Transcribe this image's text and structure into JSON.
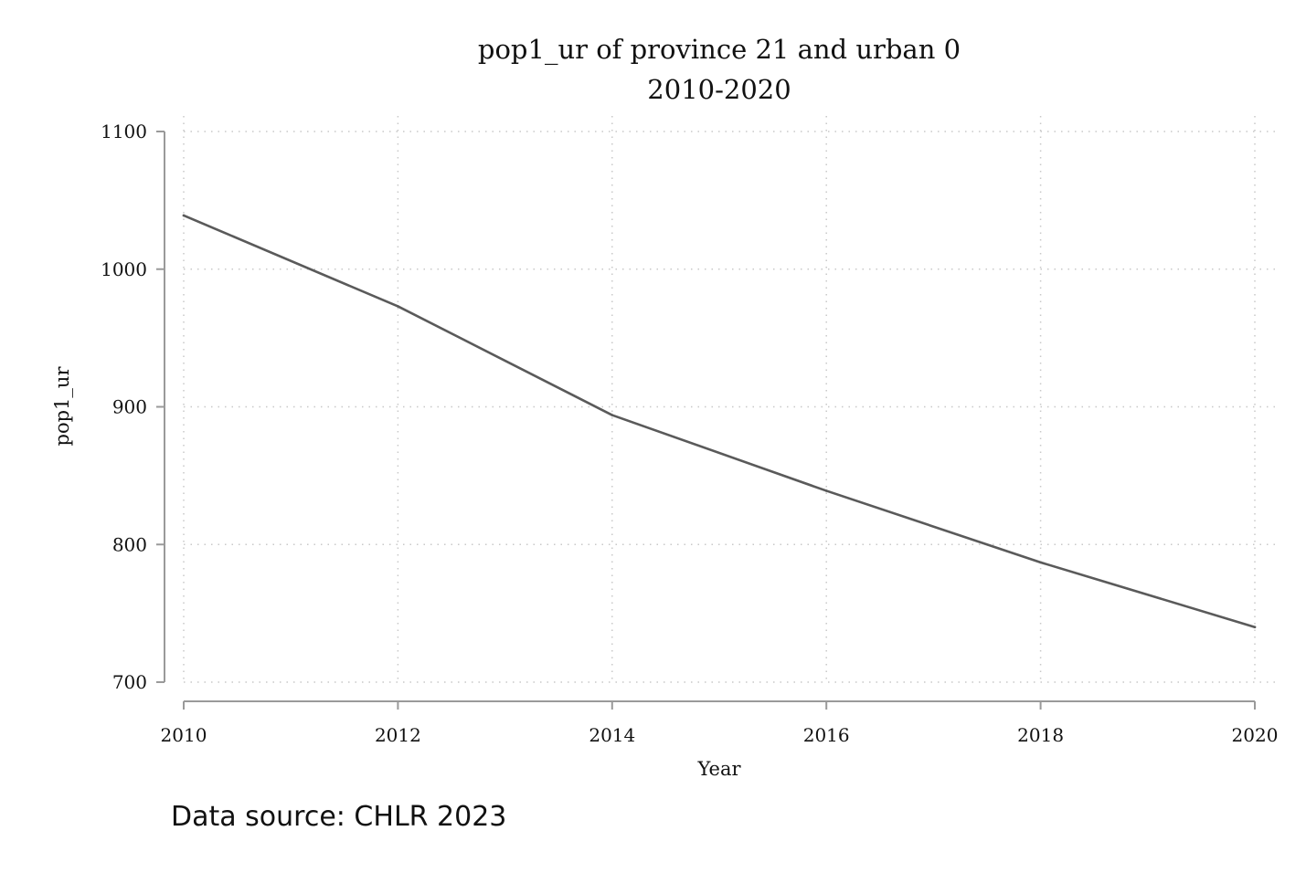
{
  "chart_data": {
    "type": "line",
    "title": "pop1_ur of province 21 and urban 0",
    "subtitle": "2010-2020",
    "xlabel": "Year",
    "ylabel": "pop1_ur",
    "note": "Data source: CHLR 2023",
    "x": [
      2010,
      2012,
      2014,
      2016,
      2018,
      2020
    ],
    "series": [
      {
        "values": [
          1039,
          973,
          894,
          839,
          787,
          740
        ]
      }
    ],
    "xlim": [
      2010,
      2020
    ],
    "ylim": [
      700,
      1100
    ],
    "xticks": [
      2010,
      2012,
      2014,
      2016,
      2018,
      2020
    ],
    "yticks": [
      700,
      800,
      900,
      1000,
      1100
    ],
    "xtick_labels": [
      "2010",
      "2012",
      "2014",
      "2016",
      "2018",
      "2020"
    ],
    "ytick_labels": [
      "700",
      "800",
      "900",
      "1000",
      "1100"
    ],
    "grid": true,
    "line_color": "#5a5a5a",
    "grid_color": "#c8c8c8",
    "axis_color": "#9a9a9a"
  }
}
